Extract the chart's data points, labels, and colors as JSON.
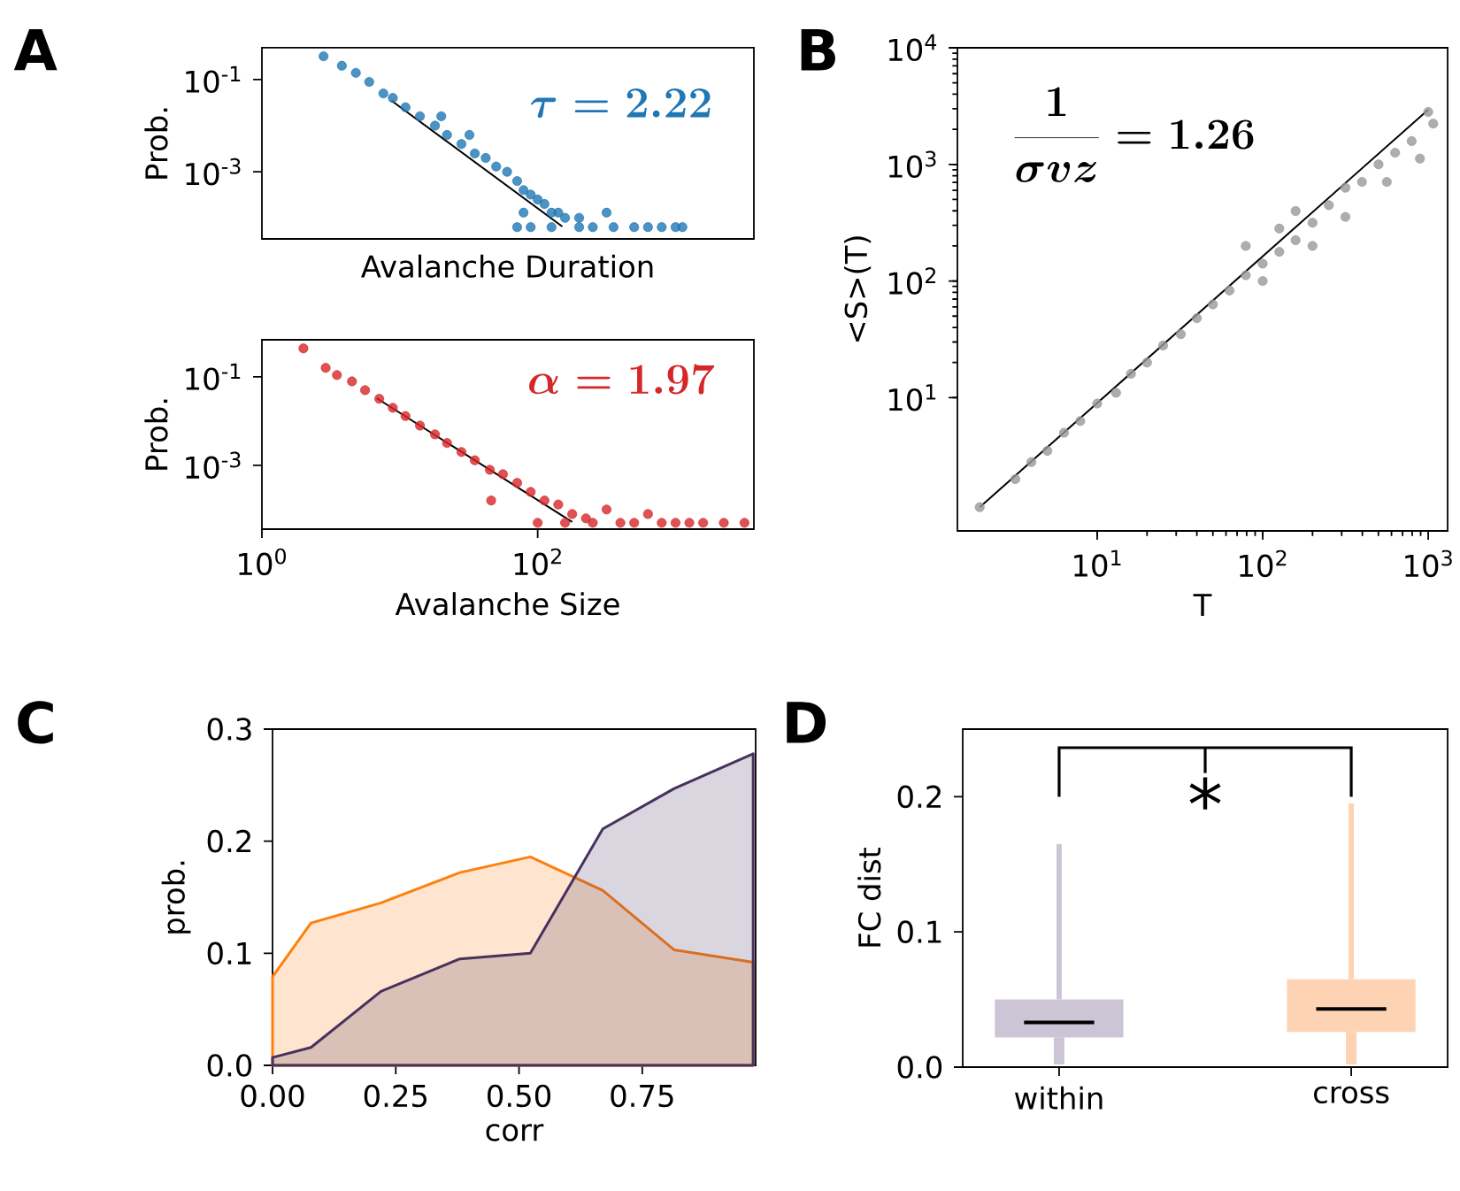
{
  "chart_data": [
    {
      "type": "scatter",
      "title": "A",
      "xlabel": "Avalanche Duration",
      "ylabel": "Prob.",
      "log": "xy",
      "tick_labels": "y",
      "xlim": [
        1,
        3700
      ],
      "ylim": [
        3.5e-05,
        0.49
      ],
      "yticks": [
        {
          "value": 0.1,
          "label": "10$^{-1}$"
        },
        {
          "value": 0.001,
          "label": "10$^{-3}$"
        }
      ],
      "annotations": [
        "\\tau = 2.22"
      ],
      "series": [
        {
          "color": "#1f77b4",
          "marker": "circle",
          "x": [
            2.8,
            3.8,
            4.8,
            6.0,
            7.6,
            8.9,
            11,
            14,
            18,
            22,
            28,
            35,
            42,
            50,
            60,
            71,
            79,
            89,
            100,
            112,
            126,
            141,
            158,
            200,
            79,
            71,
            89,
            126,
            200,
            251,
            316,
            355,
            501,
            631,
            794,
            1000,
            1122,
            32,
            20
          ],
          "values": [
            0.32,
            0.2,
            0.14,
            0.089,
            0.05,
            0.04,
            0.025,
            0.016,
            0.01,
            0.0063,
            0.004,
            0.0025,
            0.002,
            0.0013,
            0.001,
            0.00063,
            0.0004,
            0.00032,
            0.00025,
            0.0002,
            0.00013,
            0.00013,
            0.0001,
            0.0001,
            0.00013,
            6.3e-05,
            6.3e-05,
            6.3e-05,
            6.3e-05,
            6.3e-05,
            0.00013,
            6.3e-05,
            6.3e-05,
            6.3e-05,
            6.3e-05,
            6.3e-05,
            6.3e-05,
            0.0063,
            0.016
          ]
        },
        {
          "type": "line",
          "marker": "none",
          "color": "#000000",
          "x": [
            8.7,
            151
          ],
          "values": [
            0.035,
            6.5e-05
          ]
        }
      ]
    },
    {
      "type": "scatter",
      "xlabel": "Avalanche Size",
      "ylabel": "Prob.",
      "log": "xy",
      "xlim": [
        1,
        3700
      ],
      "ylim": [
        3.6e-05,
        0.69
      ],
      "xticks": [
        {
          "value": 1,
          "label": "10$^{0}$"
        },
        {
          "value": 100,
          "label": "10$^{2}$"
        }
      ],
      "yticks": [
        {
          "value": 0.1,
          "label": "10$^{-1}$"
        },
        {
          "value": 0.001,
          "label": "10$^{-3}$"
        }
      ],
      "annotations": [
        "\\alpha = 1.97"
      ],
      "series": [
        {
          "color": "#d62728",
          "marker": "circle",
          "x": [
            2.0,
            2.9,
            3.5,
            4.5,
            5.6,
            7.1,
            8.9,
            11,
            14,
            18,
            22,
            28,
            35,
            45,
            56,
            71,
            89,
            112,
            46,
            141,
            178,
            224,
            100,
            158,
            251,
            316,
            398,
            501,
            631,
            794,
            1000,
            1259,
            1585,
            2239,
            3162
          ],
          "values": [
            0.44,
            0.16,
            0.11,
            0.079,
            0.05,
            0.032,
            0.02,
            0.013,
            0.0079,
            0.005,
            0.0032,
            0.002,
            0.0013,
            0.00079,
            0.00063,
            0.0004,
            0.00025,
            0.00016,
            0.00016,
            0.00013,
            7.9e-05,
            6.3e-05,
            5e-05,
            5e-05,
            5e-05,
            0.0001,
            5e-05,
            5e-05,
            7.9e-05,
            5e-05,
            5e-05,
            5e-05,
            5e-05,
            5e-05,
            5e-05
          ]
        },
        {
          "type": "line",
          "marker": "none",
          "color": "#000000",
          "x": [
            6.8,
            178
          ],
          "values": [
            0.033,
            5.25e-05
          ]
        }
      ]
    },
    {
      "type": "scatter",
      "title": "B",
      "xlabel": "T",
      "ylabel": "<S>(T)",
      "log": "xy",
      "xlim": [
        1.43,
        1310
      ],
      "ylim": [
        0.72,
        10000
      ],
      "xticks": [
        {
          "value": 10,
          "label": "10$^{1}$"
        },
        {
          "value": 100,
          "label": "10$^{2}$"
        },
        {
          "value": 1000,
          "label": "10$^{3}$"
        }
      ],
      "yticks": [
        {
          "value": 10,
          "label": "10$^{1}$"
        },
        {
          "value": 100,
          "label": "10$^{2}$"
        },
        {
          "value": 1000,
          "label": "10$^{3}$"
        },
        {
          "value": 10000,
          "label": "10$^{4}$"
        }
      ],
      "annotations": [
        "\\frac{1}{\\sigma v z} = 1.26"
      ],
      "series": [
        {
          "color": "#999999",
          "marker": "circle",
          "x": [
            1.95,
            3.2,
            4.0,
            5.0,
            6.3,
            7.9,
            10,
            13,
            16,
            20,
            25,
            32,
            40,
            50,
            63,
            79,
            100,
            100,
            126,
            126,
            158,
            158,
            200,
            200,
            251,
            316,
            316,
            398,
            501,
            562,
            631,
            794,
            891,
            1000,
            1072,
            79
          ],
          "values": [
            1.15,
            2.0,
            2.8,
            3.5,
            5.0,
            6.3,
            8.9,
            11,
            16,
            20,
            28,
            35,
            48,
            63,
            83,
            112,
            141,
            100,
            178,
            282,
            224,
            398,
            316,
            200,
            447,
            631,
            355,
            708,
            1000,
            708,
            1259,
            1585,
            1122,
            2818,
            2239,
            200
          ]
        },
        {
          "type": "line",
          "marker": "none",
          "color": "#000000",
          "x": [
            1.95,
            1000
          ],
          "values": [
            1.15,
            2950
          ]
        }
      ]
    },
    {
      "type": "area",
      "title": "C",
      "xlabel": "corr",
      "ylabel": "prob.",
      "xlim": [
        0,
        0.98
      ],
      "ylim": [
        0,
        0.3
      ],
      "xticks": [
        {
          "value": 0,
          "label": "0.00"
        },
        {
          "value": 0.25,
          "label": "0.25"
        },
        {
          "value": 0.5,
          "label": "0.50"
        },
        {
          "value": 0.75,
          "label": "0.75"
        }
      ],
      "yticks": [
        {
          "value": 0,
          "label": "0.0"
        },
        {
          "value": 0.1,
          "label": "0.1"
        },
        {
          "value": 0.2,
          "label": "0.2"
        },
        {
          "value": 0.3,
          "label": "0.3"
        }
      ],
      "x": [
        0,
        0.078,
        0.22,
        0.38,
        0.523,
        0.67,
        0.815,
        0.975
      ],
      "series": [
        {
          "color": "#ff7f0e",
          "values": [
            0.079,
            0.127,
            0.145,
            0.172,
            0.186,
            0.156,
            0.103,
            0.092
          ]
        },
        {
          "color": "#46325d",
          "values": [
            0.007,
            0.016,
            0.066,
            0.095,
            0.1,
            0.211,
            0.247,
            0.278
          ]
        }
      ]
    },
    {
      "type": "box",
      "title": "D",
      "ylabel": "FC dist",
      "categories": [
        "within",
        "cross"
      ],
      "colors": [
        "#cbc5d6",
        "#fdd3b3"
      ],
      "ylim": [
        0,
        0.25
      ],
      "yticks": [
        {
          "value": 0,
          "label": "0.0"
        },
        {
          "value": 0.1,
          "label": "0.1"
        },
        {
          "value": 0.2,
          "label": "0.2"
        }
      ],
      "boxes": [
        {
          "low": 0.002,
          "q1": 0.022,
          "median": 0.033,
          "q3": 0.05,
          "high": 0.165
        },
        {
          "low": 0.002,
          "q1": 0.026,
          "median": 0.043,
          "q3": 0.065,
          "high": 0.195
        }
      ],
      "annotations": [
        "*"
      ]
    }
  ]
}
